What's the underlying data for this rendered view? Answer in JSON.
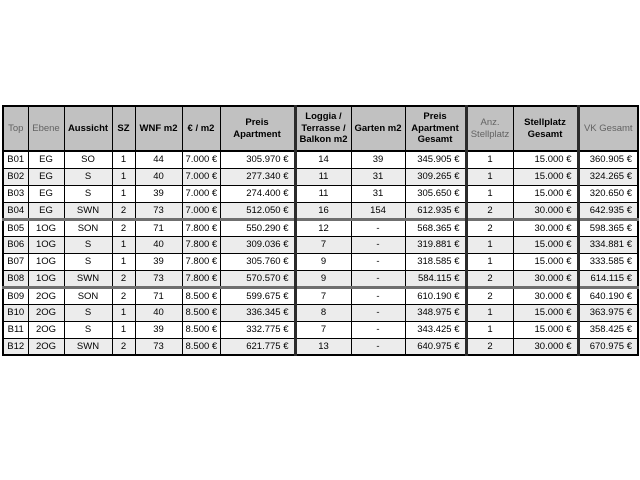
{
  "colors": {
    "header_bg": "#c1c1c1",
    "stripe_bg": "#ececec",
    "muted_text": "#636363",
    "group_separator": "#6f6f6f",
    "border": "#000000"
  },
  "table": {
    "columns": [
      {
        "key": "top",
        "label": "Top",
        "muted": true
      },
      {
        "key": "ebene",
        "label": "Ebene",
        "muted": true
      },
      {
        "key": "aussicht",
        "label": "Aussicht",
        "muted": false
      },
      {
        "key": "sz",
        "label": "SZ",
        "muted": false
      },
      {
        "key": "wnf-m2",
        "label": "WNF m2",
        "muted": false
      },
      {
        "key": "eur-m2",
        "label": "€ / m2",
        "muted": false
      },
      {
        "key": "preis-apartment",
        "label": "Preis\nApartment",
        "muted": false
      },
      {
        "key": "loggia-terrasse-balkon",
        "label": "Loggia /\nTerrasse /\nBalkon m2",
        "muted": false
      },
      {
        "key": "garten-m2",
        "label": "Garten m2",
        "muted": false
      },
      {
        "key": "preis-apartment-gesamt",
        "label": "Preis\nApartment\nGesamt",
        "muted": false
      },
      {
        "key": "anz-stellplatz",
        "label": "Anz.\nStellplatz",
        "muted": true
      },
      {
        "key": "stellplatz-gesamt",
        "label": "Stellplatz\nGesamt",
        "muted": false
      },
      {
        "key": "vk-gesamt",
        "label": "VK Gesamt",
        "muted": true
      }
    ],
    "rows": [
      {
        "group_start": false,
        "cells": [
          "B01",
          "EG",
          "SO",
          "1",
          "44",
          "7.000 €",
          "305.970 €",
          "14",
          "39",
          "345.905 €",
          "1",
          "15.000 €",
          "360.905 €"
        ]
      },
      {
        "group_start": false,
        "cells": [
          "B02",
          "EG",
          "S",
          "1",
          "40",
          "7.000 €",
          "277.340 €",
          "11",
          "31",
          "309.265 €",
          "1",
          "15.000 €",
          "324.265 €"
        ]
      },
      {
        "group_start": false,
        "cells": [
          "B03",
          "EG",
          "S",
          "1",
          "39",
          "7.000 €",
          "274.400 €",
          "11",
          "31",
          "305.650 €",
          "1",
          "15.000 €",
          "320.650 €"
        ]
      },
      {
        "group_start": false,
        "cells": [
          "B04",
          "EG",
          "SWN",
          "2",
          "73",
          "7.000 €",
          "512.050 €",
          "16",
          "154",
          "612.935 €",
          "2",
          "30.000 €",
          "642.935 €"
        ]
      },
      {
        "group_start": true,
        "cells": [
          "B05",
          "1OG",
          "SON",
          "2",
          "71",
          "7.800 €",
          "550.290 €",
          "12",
          "-",
          "568.365 €",
          "2",
          "30.000 €",
          "598.365 €"
        ]
      },
      {
        "group_start": false,
        "cells": [
          "B06",
          "1OG",
          "S",
          "1",
          "40",
          "7.800 €",
          "309.036 €",
          "7",
          "-",
          "319.881 €",
          "1",
          "15.000 €",
          "334.881 €"
        ]
      },
      {
        "group_start": false,
        "cells": [
          "B07",
          "1OG",
          "S",
          "1",
          "39",
          "7.800 €",
          "305.760 €",
          "9",
          "-",
          "318.585 €",
          "1",
          "15.000 €",
          "333.585 €"
        ]
      },
      {
        "group_start": false,
        "cells": [
          "B08",
          "1OG",
          "SWN",
          "2",
          "73",
          "7.800 €",
          "570.570 €",
          "9",
          "-",
          "584.115 €",
          "2",
          "30.000 €",
          "614.115 €"
        ]
      },
      {
        "group_start": true,
        "cells": [
          "B09",
          "2OG",
          "SON",
          "2",
          "71",
          "8.500 €",
          "599.675 €",
          "7",
          "-",
          "610.190 €",
          "2",
          "30.000 €",
          "640.190 €"
        ]
      },
      {
        "group_start": false,
        "cells": [
          "B10",
          "2OG",
          "S",
          "1",
          "40",
          "8.500 €",
          "336.345 €",
          "8",
          "-",
          "348.975 €",
          "1",
          "15.000 €",
          "363.975 €"
        ]
      },
      {
        "group_start": false,
        "cells": [
          "B11",
          "2OG",
          "S",
          "1",
          "39",
          "8.500 €",
          "332.775 €",
          "7",
          "-",
          "343.425 €",
          "1",
          "15.000 €",
          "358.425 €"
        ]
      },
      {
        "group_start": false,
        "cells": [
          "B12",
          "2OG",
          "SWN",
          "2",
          "73",
          "8.500 €",
          "621.775 €",
          "13",
          "-",
          "640.975 €",
          "2",
          "30.000 €",
          "670.975 €"
        ]
      }
    ]
  }
}
